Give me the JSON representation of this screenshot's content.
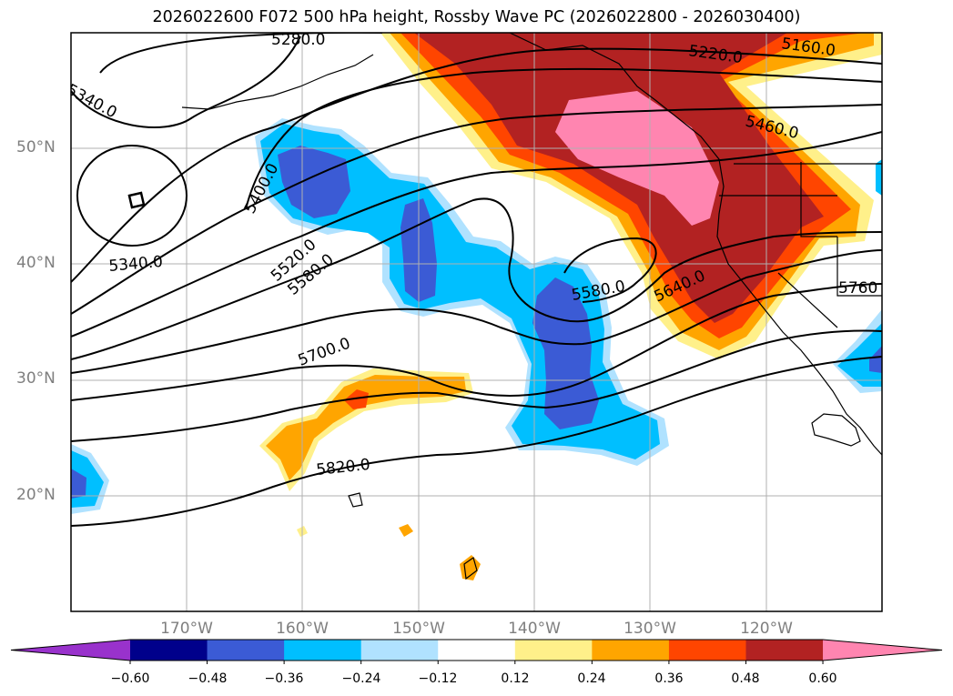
{
  "chart_data": {
    "type": "map",
    "title": "2026022600 F072 500 hPa height, Rossby Wave PC (2026022800 - 2026030400)",
    "lat_labels": [
      "50°N",
      "40°N",
      "30°N",
      "20°N"
    ],
    "lon_labels": [
      "170°W",
      "160°W",
      "150°W",
      "140°W",
      "130°W",
      "120°W"
    ],
    "grid": true,
    "contour_labels": [
      "5280.0",
      "5220.0",
      "5160.0",
      "5340.0",
      "5460.0",
      "5400.0",
      "5520.0",
      "5580.0",
      "5340.0",
      "5580.0",
      "5640.0",
      "5760",
      "5700.0",
      "5820.0"
    ],
    "colorbar": {
      "ticks": [
        "−0.60",
        "−0.48",
        "−0.36",
        "−0.24",
        "−0.12",
        "0.12",
        "0.24",
        "0.36",
        "0.48",
        "0.60"
      ],
      "colors": [
        "#9932cc",
        "#00008b",
        "#3b5bd5",
        "#00bfff",
        "#b0e2ff",
        "#ffffff",
        "#fff08a",
        "#ffa500",
        "#ff4500",
        "#b22222",
        "#ff85b0"
      ],
      "extend": "both"
    }
  }
}
